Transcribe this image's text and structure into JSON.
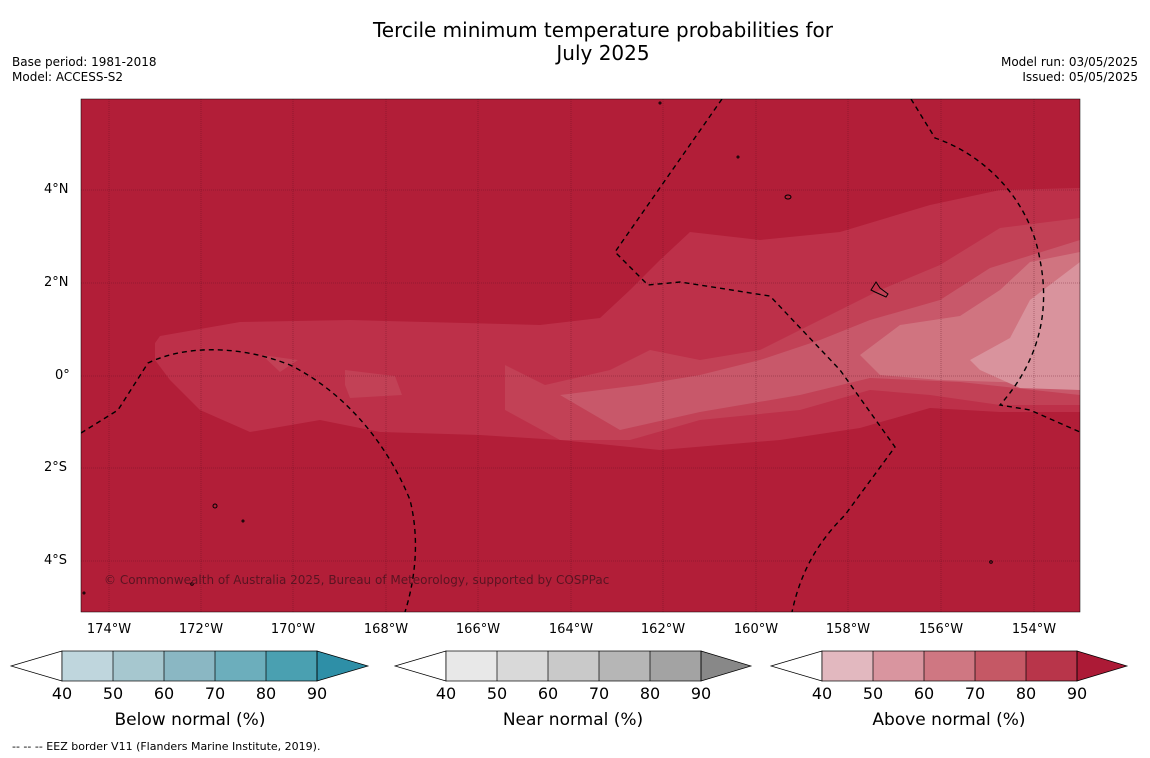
{
  "header": {
    "title_line1": "Tercile minimum temperature probabilities for",
    "title_line2": "July 2025",
    "base_period": "Base period: 1981-2018",
    "model": "Model: ACCESS-S2",
    "model_run": "Model run: 03/05/2025",
    "issued": "Issued: 05/05/2025"
  },
  "map": {
    "lat_labels": [
      "4°N",
      "2°N",
      "0°",
      "2°S",
      "4°S"
    ],
    "lon_labels": [
      "174°W",
      "172°W",
      "170°W",
      "168°W",
      "166°W",
      "164°W",
      "162°W",
      "160°W",
      "158°W",
      "156°W",
      "154°W"
    ],
    "copyright": "© Commonwealth of Australia 2025, Bureau of Meteorology, supported by COSPPac"
  },
  "legends": [
    {
      "label": "Below normal (%)",
      "colors": [
        "#bfd6dd",
        "#a6c7cf",
        "#8ab7c3",
        "#6caebc",
        "#4aa0b1",
        "#2e8fa7"
      ]
    },
    {
      "label": "Near normal (%)",
      "colors": [
        "#e8e8e8",
        "#d9d9d9",
        "#c9c9c9",
        "#b6b6b6",
        "#a3a3a3",
        "#888888"
      ]
    },
    {
      "label": "Above normal (%)",
      "colors": [
        "#e2b8bf",
        "#d9959f",
        "#cf7782",
        "#c55865",
        "#b8354a",
        "#ac1a36"
      ]
    }
  ],
  "legend_ticks": [
    "40",
    "50",
    "60",
    "70",
    "80",
    "90"
  ],
  "footnote": "-- -- -- EEZ border V11 (Flanders Marine Institute, 2019)."
}
